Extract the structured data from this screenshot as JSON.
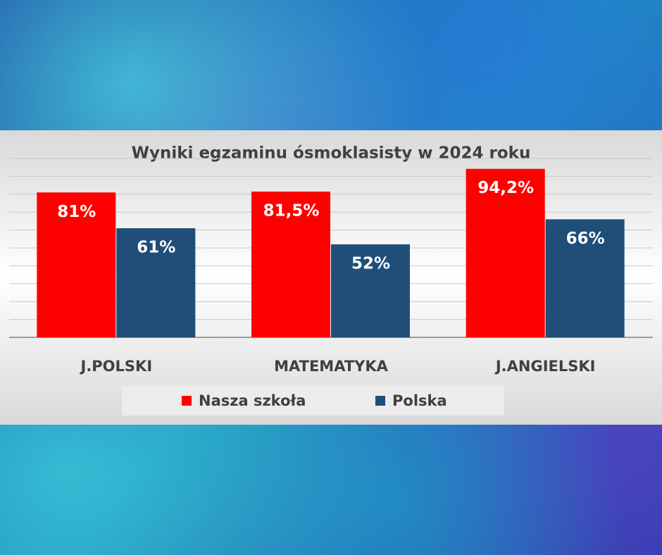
{
  "chart_data": {
    "type": "bar",
    "title": "Wyniki egzaminu ósmoklasisty w 2024 roku",
    "categories": [
      "J.POLSKI",
      "MATEMATYKA",
      "J.ANGIELSKI"
    ],
    "series": [
      {
        "name": "Nasza szkoła",
        "color": "#ff0000",
        "values": [
          81,
          81.5,
          94.2
        ],
        "value_labels": [
          "81%",
          "81,5%",
          "94,2%"
        ]
      },
      {
        "name": "Polska",
        "color": "#1f4e79",
        "values": [
          61,
          52,
          66
        ],
        "value_labels": [
          "61%",
          "52%",
          "66%"
        ]
      }
    ],
    "ylim": [
      0,
      100
    ],
    "yticks": [
      0,
      10,
      20,
      30,
      40,
      50,
      60,
      70,
      80,
      90,
      100
    ],
    "grid": true
  }
}
